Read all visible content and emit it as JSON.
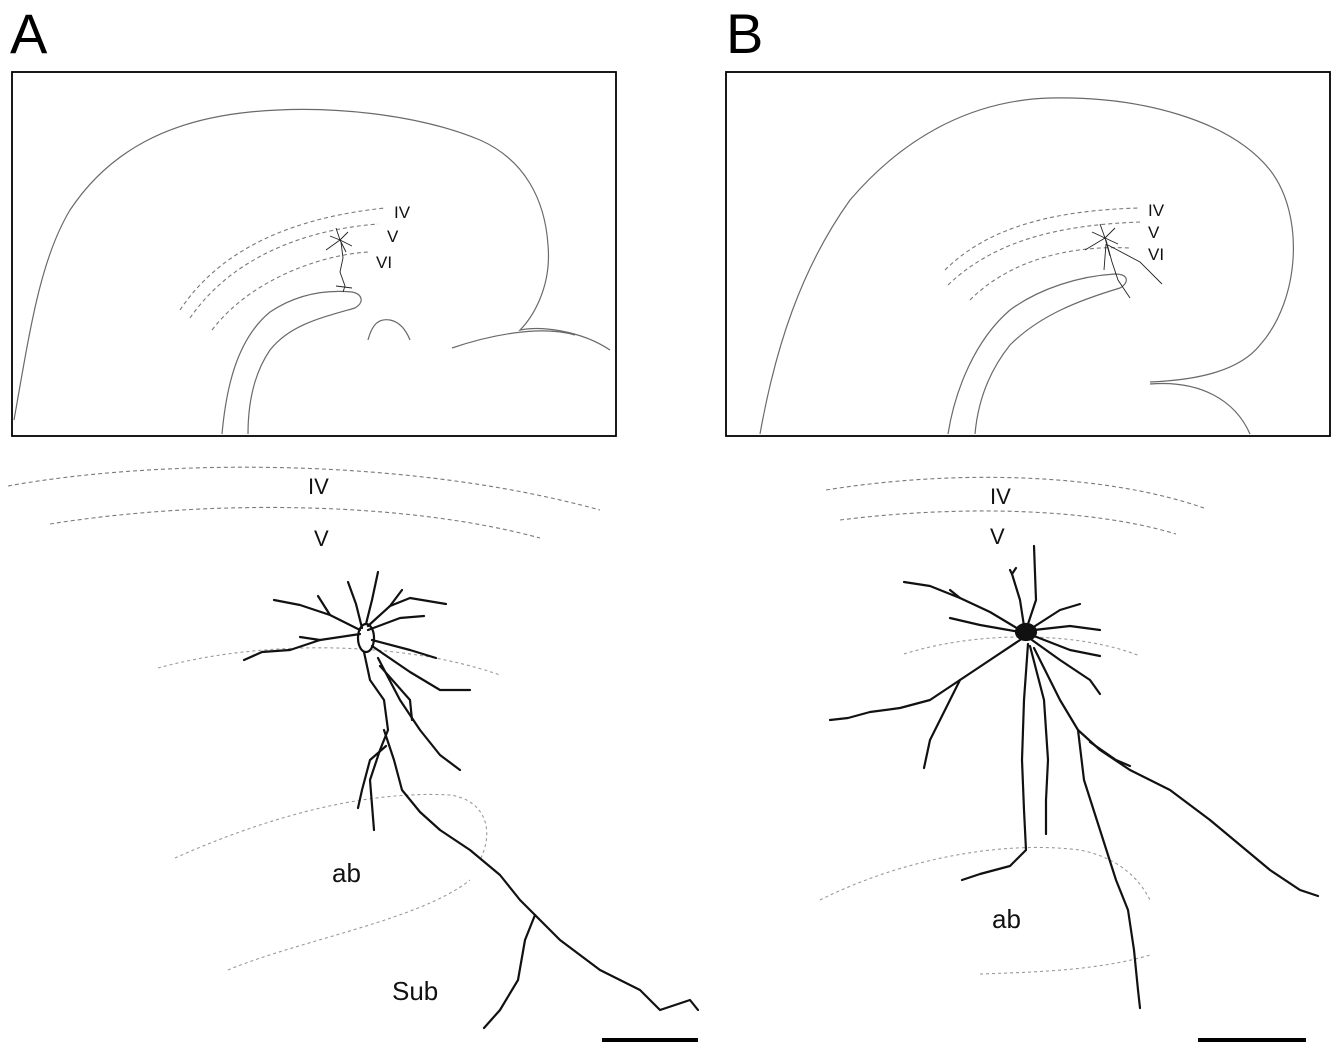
{
  "panels": [
    {
      "letter": "A",
      "inset_layers": [
        "IV",
        "V",
        "VI"
      ],
      "detail_layers": [
        "IV",
        "V"
      ],
      "detail_regions": [
        "ab",
        "Sub"
      ]
    },
    {
      "letter": "B",
      "inset_layers": [
        "IV",
        "V",
        "VI"
      ],
      "detail_layers": [
        "IV",
        "V"
      ],
      "detail_regions": [
        "ab"
      ]
    }
  ]
}
